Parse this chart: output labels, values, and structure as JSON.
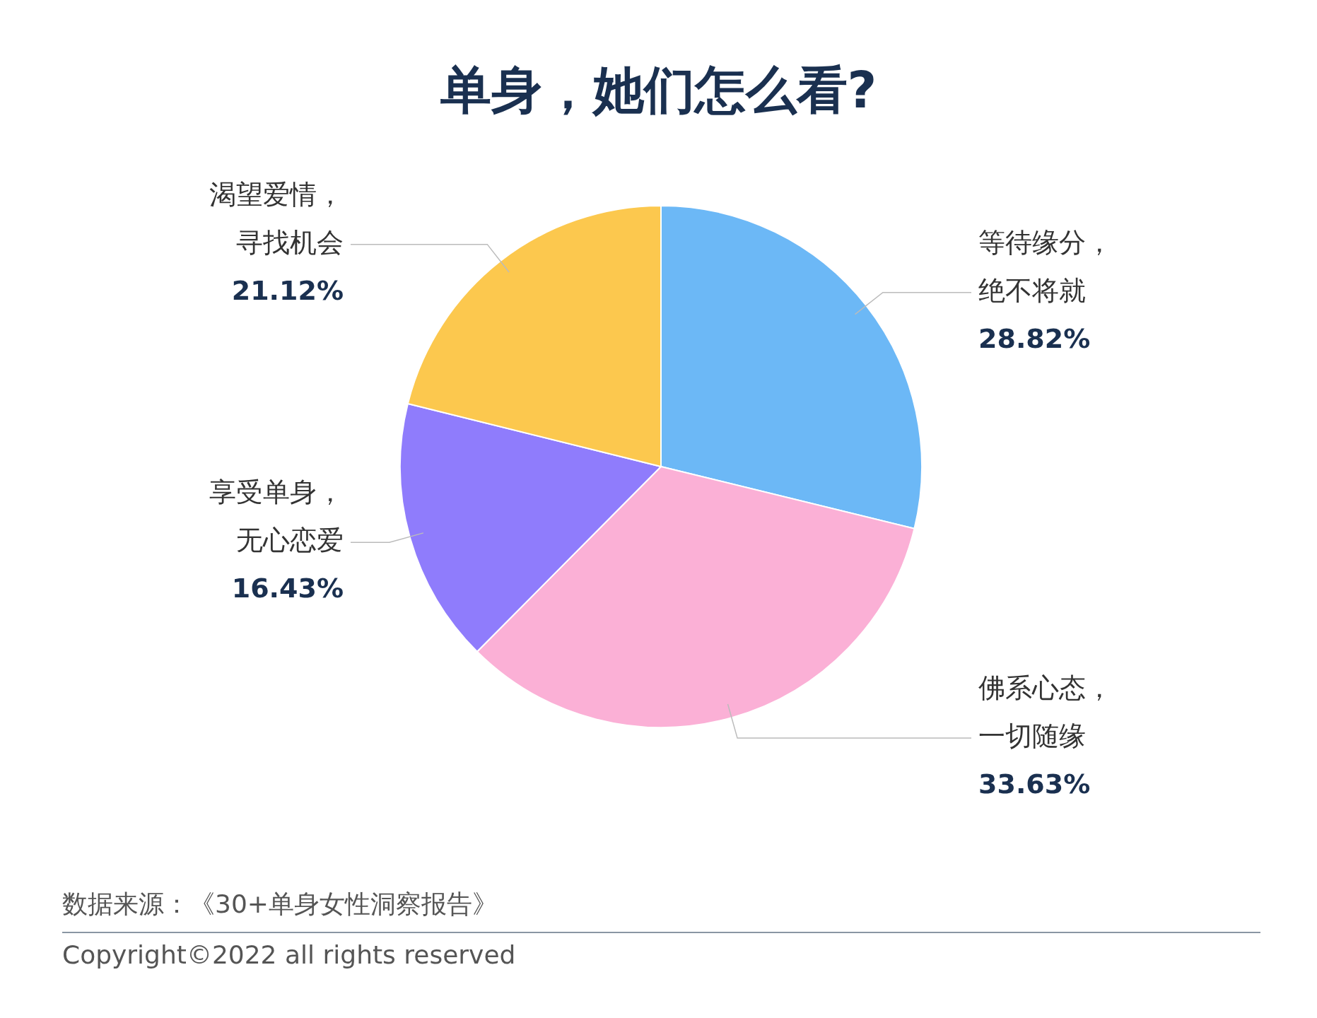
{
  "chart_data": {
    "type": "pie",
    "title": "单身，她们怎么看?",
    "categories": [
      "等待缘分，绝不将就",
      "佛系心态，一切随缘",
      "享受单身，无心恋爱",
      "渴望爱情，寻找机会"
    ],
    "values": [
      28.82,
      33.63,
      16.43,
      21.12
    ],
    "value_labels": [
      "28.82%",
      "33.63%",
      "16.43%",
      "21.12%"
    ],
    "colors": [
      "#6cb8f6",
      "#fbb0d6",
      "#8f7cfc",
      "#fcc84e"
    ],
    "legend": false,
    "annotations": [
      "数据来源：《30+单身女性洞察报告》",
      "Copyright©2022 all rights reserved"
    ]
  }
}
